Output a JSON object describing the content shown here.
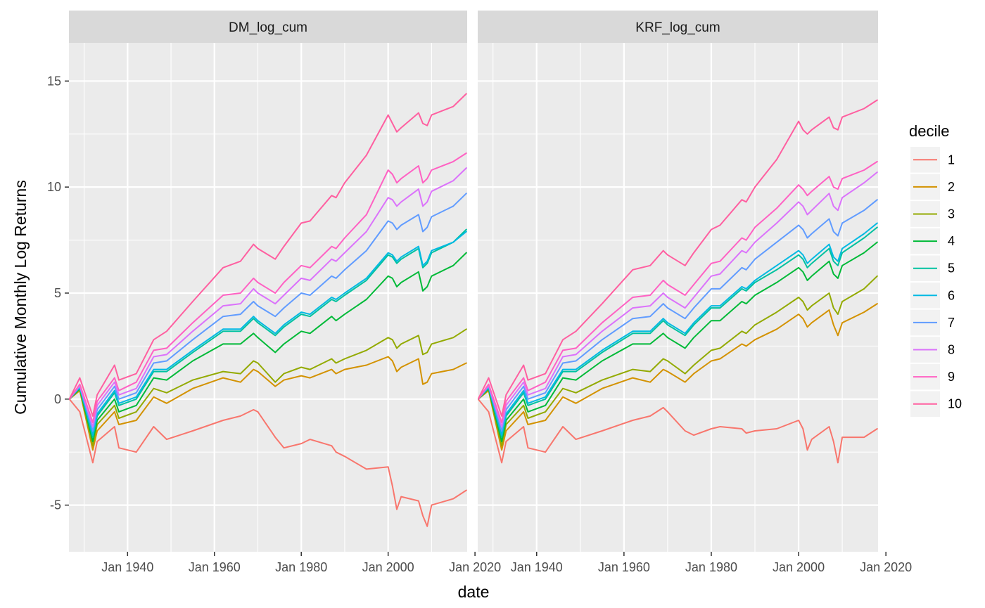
{
  "chart_data": {
    "type": "line",
    "facets": [
      "DM_log_cum",
      "KRF_log_cum"
    ],
    "xlabel": "date",
    "ylabel": "Cumulative Monthly Log Returns",
    "xlim": [
      1926.5,
      2018.2
    ],
    "ylim": [
      -7.2,
      16.8
    ],
    "x_ticks": [
      1940,
      1960,
      1980,
      2000,
      2020
    ],
    "x_tick_labels": [
      "Jan 1940",
      "Jan 1960",
      "Jan 1980",
      "Jan 2000",
      "Jan 2020"
    ],
    "y_ticks": [
      -5,
      0,
      5,
      10,
      15
    ],
    "y_tick_labels": [
      "-5",
      "0",
      "5",
      "10",
      "15"
    ],
    "legend_title": "decile",
    "legend_position": "right",
    "x": [
      1926.6,
      1929,
      1932,
      1933,
      1937,
      1938,
      1942,
      1946,
      1949,
      1955,
      1962,
      1966,
      1969,
      1970,
      1974,
      1976,
      1980,
      1982,
      1987,
      1988,
      1990,
      1995,
      2000,
      2001,
      2002,
      2003,
      2007,
      2008,
      2009,
      2010,
      2015,
      2018
    ],
    "panels": [
      {
        "name": "DM_log_cum",
        "series": [
          {
            "name": "1",
            "color": "#F8766D",
            "values": [
              0.0,
              -0.6,
              -3.0,
              -2.0,
              -1.3,
              -2.3,
              -2.5,
              -1.3,
              -1.9,
              -1.5,
              -1.0,
              -0.8,
              -0.5,
              -0.6,
              -1.8,
              -2.3,
              -2.1,
              -1.9,
              -2.2,
              -2.5,
              -2.7,
              -3.3,
              -3.2,
              -4.1,
              -5.2,
              -4.6,
              -4.8,
              -5.5,
              -6.0,
              -5.0,
              -4.7,
              -4.3
            ]
          },
          {
            "name": "2",
            "color": "#D39200",
            "values": [
              0.0,
              0.4,
              -2.4,
              -1.5,
              -0.6,
              -1.2,
              -1.0,
              0.1,
              -0.2,
              0.5,
              1.0,
              0.8,
              1.4,
              1.3,
              0.6,
              0.9,
              1.1,
              1.0,
              1.4,
              1.2,
              1.4,
              1.6,
              2.0,
              1.8,
              1.3,
              1.5,
              1.9,
              0.7,
              0.8,
              1.2,
              1.4,
              1.7
            ]
          },
          {
            "name": "3",
            "color": "#93AA00",
            "values": [
              0.0,
              0.45,
              -2.2,
              -1.2,
              -0.3,
              -0.9,
              -0.6,
              0.5,
              0.3,
              0.9,
              1.3,
              1.2,
              1.8,
              1.7,
              0.8,
              1.2,
              1.5,
              1.4,
              1.9,
              1.7,
              1.9,
              2.3,
              2.9,
              2.8,
              2.4,
              2.6,
              3.0,
              2.1,
              2.2,
              2.6,
              2.9,
              3.3
            ]
          },
          {
            "name": "4",
            "color": "#00BA38",
            "values": [
              0.0,
              0.5,
              -2.0,
              -1.0,
              0.0,
              -0.6,
              -0.3,
              1.0,
              0.9,
              1.8,
              2.6,
              2.6,
              3.1,
              2.9,
              2.2,
              2.6,
              3.2,
              3.1,
              3.9,
              3.7,
              4.0,
              4.7,
              5.8,
              5.7,
              5.3,
              5.5,
              6.0,
              5.1,
              5.3,
              5.8,
              6.3,
              6.9
            ]
          },
          {
            "name": "5",
            "color": "#00C19F",
            "values": [
              0.0,
              0.55,
              -1.8,
              -0.8,
              0.3,
              -0.3,
              0.0,
              1.3,
              1.3,
              2.2,
              3.2,
              3.2,
              3.8,
              3.6,
              3.0,
              3.4,
              4.0,
              3.9,
              4.7,
              4.6,
              4.9,
              5.6,
              6.8,
              6.7,
              6.4,
              6.6,
              7.1,
              6.2,
              6.4,
              6.9,
              7.4,
              8.0
            ]
          },
          {
            "name": "6",
            "color": "#00B9E3",
            "values": [
              0.0,
              0.55,
              -1.7,
              -0.7,
              0.4,
              -0.2,
              0.1,
              1.4,
              1.4,
              2.3,
              3.3,
              3.3,
              3.9,
              3.7,
              3.1,
              3.5,
              4.1,
              4.0,
              4.8,
              4.7,
              5.0,
              5.7,
              6.9,
              6.8,
              6.5,
              6.7,
              7.2,
              6.3,
              6.5,
              7.0,
              7.4,
              7.9
            ]
          },
          {
            "name": "7",
            "color": "#619CFF",
            "values": [
              0.0,
              0.6,
              -1.5,
              -0.5,
              0.6,
              0.0,
              0.3,
              1.7,
              1.8,
              2.8,
              3.9,
              4.0,
              4.6,
              4.4,
              3.9,
              4.3,
              5.0,
              4.9,
              5.8,
              5.7,
              6.1,
              7.0,
              8.4,
              8.3,
              8.0,
              8.2,
              8.7,
              7.9,
              8.1,
              8.6,
              9.1,
              9.7
            ]
          },
          {
            "name": "8",
            "color": "#DB72FB",
            "values": [
              0.0,
              0.65,
              -1.3,
              -0.3,
              0.8,
              0.2,
              0.5,
              2.0,
              2.1,
              3.2,
              4.4,
              4.5,
              5.2,
              5.0,
              4.5,
              4.9,
              5.7,
              5.6,
              6.6,
              6.5,
              6.9,
              7.9,
              9.5,
              9.4,
              9.1,
              9.3,
              9.9,
              9.1,
              9.3,
              9.8,
              10.3,
              10.9
            ]
          },
          {
            "name": "9",
            "color": "#FF61C3",
            "values": [
              0.0,
              0.7,
              -1.1,
              -0.1,
              1.0,
              0.4,
              0.8,
              2.3,
              2.4,
              3.6,
              4.9,
              5.0,
              5.7,
              5.5,
              5.0,
              5.5,
              6.3,
              6.2,
              7.2,
              7.1,
              7.6,
              8.7,
              10.8,
              10.6,
              10.2,
              10.4,
              11.0,
              10.2,
              10.4,
              10.8,
              11.2,
              11.6
            ]
          },
          {
            "name": "10",
            "color": "#FF5FA0",
            "values": [
              0.0,
              1.0,
              -0.8,
              0.2,
              1.6,
              0.9,
              1.2,
              2.8,
              3.2,
              4.6,
              6.2,
              6.5,
              7.3,
              7.1,
              6.6,
              7.2,
              8.3,
              8.4,
              9.6,
              9.5,
              10.2,
              11.5,
              13.4,
              13.0,
              12.6,
              12.8,
              13.5,
              13.0,
              12.9,
              13.4,
              13.8,
              14.4
            ]
          }
        ]
      },
      {
        "name": "KRF_log_cum",
        "series": [
          {
            "name": "1",
            "color": "#F8766D",
            "values": [
              0.0,
              -0.6,
              -3.0,
              -2.0,
              -1.3,
              -2.3,
              -2.5,
              -1.3,
              -1.9,
              -1.5,
              -1.0,
              -0.8,
              -0.4,
              -0.6,
              -1.5,
              -1.7,
              -1.4,
              -1.3,
              -1.4,
              -1.6,
              -1.5,
              -1.4,
              -1.0,
              -1.4,
              -2.4,
              -1.9,
              -1.3,
              -2.0,
              -3.0,
              -1.8,
              -1.8,
              -1.4
            ]
          },
          {
            "name": "2",
            "color": "#D39200",
            "values": [
              0.0,
              0.4,
              -2.4,
              -1.5,
              -0.6,
              -1.2,
              -1.0,
              0.1,
              -0.2,
              0.5,
              1.0,
              0.8,
              1.4,
              1.3,
              0.8,
              1.2,
              1.8,
              1.9,
              2.6,
              2.5,
              2.8,
              3.3,
              4.0,
              3.8,
              3.4,
              3.6,
              4.2,
              3.5,
              3.0,
              3.6,
              4.1,
              4.5
            ]
          },
          {
            "name": "3",
            "color": "#93AA00",
            "values": [
              0.0,
              0.45,
              -2.2,
              -1.2,
              -0.3,
              -0.9,
              -0.6,
              0.5,
              0.3,
              0.9,
              1.4,
              1.3,
              1.9,
              1.8,
              1.2,
              1.6,
              2.3,
              2.4,
              3.2,
              3.1,
              3.5,
              4.1,
              4.8,
              4.6,
              4.2,
              4.4,
              5.0,
              4.3,
              4.0,
              4.6,
              5.2,
              5.8
            ]
          },
          {
            "name": "4",
            "color": "#00BA38",
            "values": [
              0.0,
              0.5,
              -2.0,
              -1.0,
              0.0,
              -0.6,
              -0.3,
              1.0,
              0.9,
              1.8,
              2.6,
              2.6,
              3.1,
              2.9,
              2.4,
              2.9,
              3.7,
              3.7,
              4.6,
              4.5,
              4.9,
              5.5,
              6.2,
              6.0,
              5.6,
              5.8,
              6.5,
              5.9,
              5.7,
              6.3,
              6.9,
              7.4
            ]
          },
          {
            "name": "5",
            "color": "#00C19F",
            "values": [
              0.0,
              0.55,
              -1.8,
              -0.8,
              0.3,
              -0.3,
              0.0,
              1.3,
              1.3,
              2.2,
              3.1,
              3.1,
              3.7,
              3.5,
              3.0,
              3.5,
              4.3,
              4.3,
              5.2,
              5.1,
              5.5,
              6.1,
              6.8,
              6.6,
              6.2,
              6.4,
              7.1,
              6.5,
              6.3,
              6.9,
              7.6,
              8.1
            ]
          },
          {
            "name": "6",
            "color": "#00B9E3",
            "values": [
              0.0,
              0.55,
              -1.7,
              -0.7,
              0.4,
              -0.2,
              0.1,
              1.4,
              1.4,
              2.3,
              3.2,
              3.2,
              3.8,
              3.6,
              3.1,
              3.6,
              4.4,
              4.4,
              5.3,
              5.2,
              5.6,
              6.3,
              7.0,
              6.8,
              6.4,
              6.6,
              7.3,
              6.7,
              6.5,
              7.1,
              7.8,
              8.3
            ]
          },
          {
            "name": "7",
            "color": "#619CFF",
            "values": [
              0.0,
              0.6,
              -1.5,
              -0.5,
              0.6,
              0.0,
              0.3,
              1.7,
              1.8,
              2.8,
              3.8,
              3.9,
              4.5,
              4.3,
              3.8,
              4.3,
              5.2,
              5.2,
              6.2,
              6.1,
              6.6,
              7.4,
              8.2,
              8.0,
              7.6,
              7.8,
              8.5,
              7.9,
              7.7,
              8.3,
              8.9,
              9.4
            ]
          },
          {
            "name": "8",
            "color": "#DB72FB",
            "values": [
              0.0,
              0.65,
              -1.3,
              -0.3,
              0.8,
              0.2,
              0.5,
              2.0,
              2.1,
              3.2,
              4.3,
              4.4,
              5.0,
              4.8,
              4.3,
              4.8,
              5.8,
              5.9,
              7.0,
              6.9,
              7.4,
              8.3,
              9.3,
              9.1,
              8.7,
              8.9,
              9.7,
              9.1,
              8.9,
              9.5,
              10.2,
              10.7
            ]
          },
          {
            "name": "9",
            "color": "#FF61C3",
            "values": [
              0.0,
              0.7,
              -1.1,
              -0.1,
              1.0,
              0.4,
              0.8,
              2.3,
              2.4,
              3.6,
              4.8,
              4.9,
              5.6,
              5.4,
              4.9,
              5.4,
              6.4,
              6.5,
              7.6,
              7.5,
              8.1,
              9.0,
              10.1,
              9.9,
              9.6,
              9.8,
              10.5,
              10.0,
              9.9,
              10.4,
              10.8,
              11.2
            ]
          },
          {
            "name": "10",
            "color": "#FF5FA0",
            "values": [
              0.0,
              1.0,
              -0.8,
              0.2,
              1.6,
              0.9,
              1.2,
              2.8,
              3.2,
              4.5,
              6.1,
              6.3,
              7.0,
              6.8,
              6.3,
              6.9,
              8.0,
              8.2,
              9.4,
              9.3,
              10.0,
              11.3,
              13.1,
              12.7,
              12.5,
              12.7,
              13.3,
              12.8,
              12.7,
              13.3,
              13.7,
              14.1
            ]
          }
        ]
      }
    ]
  }
}
